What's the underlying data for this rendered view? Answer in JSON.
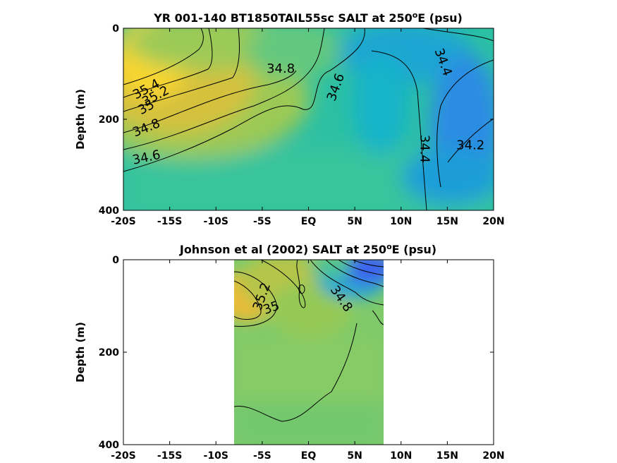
{
  "chart_data": [
    {
      "type": "heatmap",
      "title": "YR 001-140 BT1850TAIL55sc SALT at 250",
      "title_superscript": "o",
      "title_suffix": "E (psu)",
      "ylabel": "Depth (m)",
      "xlabel": "",
      "x_ticks": [
        "-20S",
        "-15S",
        "-10S",
        "-5S",
        "EQ",
        "5N",
        "10N",
        "15N",
        "20N"
      ],
      "x_tick_values": [
        -20,
        -15,
        -10,
        -5,
        0,
        5,
        10,
        15,
        20
      ],
      "y_ticks": [
        "0",
        "200",
        "400"
      ],
      "y_tick_values": [
        0,
        200,
        400
      ],
      "xlim": [
        -20,
        20
      ],
      "ylim": [
        400,
        0
      ],
      "colorscale": [
        "#3d5bf0",
        "#2a8ce3",
        "#13b3ca",
        "#2cc0a3",
        "#6cc979",
        "#a8c94c",
        "#e8ba34",
        "#f9d52d"
      ],
      "value_range": [
        33.6,
        35.6
      ],
      "contour_labels": [
        {
          "text": "35.4",
          "lat": -17.5,
          "depth": 135,
          "rotate": -28
        },
        {
          "text": "35.2",
          "lat": -16.5,
          "depth": 150,
          "rotate": -28
        },
        {
          "text": "35",
          "lat": -17.5,
          "depth": 175,
          "rotate": -28
        },
        {
          "text": "34.8",
          "lat": -17.5,
          "depth": 220,
          "rotate": -22
        },
        {
          "text": "34.6",
          "lat": -17.5,
          "depth": 285,
          "rotate": -12
        },
        {
          "text": "34.8",
          "lat": -3,
          "depth": 90,
          "rotate": 0
        },
        {
          "text": "34.6",
          "lat": 3,
          "depth": 130,
          "rotate": -70
        },
        {
          "text": "34.4",
          "lat": 14.5,
          "depth": 75,
          "rotate": 70
        },
        {
          "text": "34.4",
          "lat": 12.5,
          "depth": 265,
          "rotate": 90
        },
        {
          "text": "34.2",
          "lat": 17.5,
          "depth": 258,
          "rotate": 0
        }
      ]
    },
    {
      "type": "heatmap",
      "title": "Johnson et al (2002) SALT at 250",
      "title_superscript": "o",
      "title_suffix": "E (psu)",
      "ylabel": "Depth (m)",
      "xlabel": "",
      "x_ticks": [
        "-20S",
        "-15S",
        "-10S",
        "-5S",
        "EQ",
        "5N",
        "10N",
        "15N",
        "20N"
      ],
      "x_tick_values": [
        -20,
        -15,
        -10,
        -5,
        0,
        5,
        10,
        15,
        20
      ],
      "y_ticks": [
        "0",
        "200",
        "400"
      ],
      "y_tick_values": [
        0,
        200,
        400
      ],
      "xlim": [
        -20,
        20
      ],
      "ylim": [
        400,
        0
      ],
      "data_extent_lat": [
        -8,
        8
      ],
      "contour_labels": [
        {
          "text": "35.2",
          "lat": -5,
          "depth": 80,
          "rotate": -70
        },
        {
          "text": "35",
          "lat": -4,
          "depth": 105,
          "rotate": -20
        },
        {
          "text": "34.8",
          "lat": 3.5,
          "depth": 85,
          "rotate": 55
        }
      ]
    }
  ]
}
